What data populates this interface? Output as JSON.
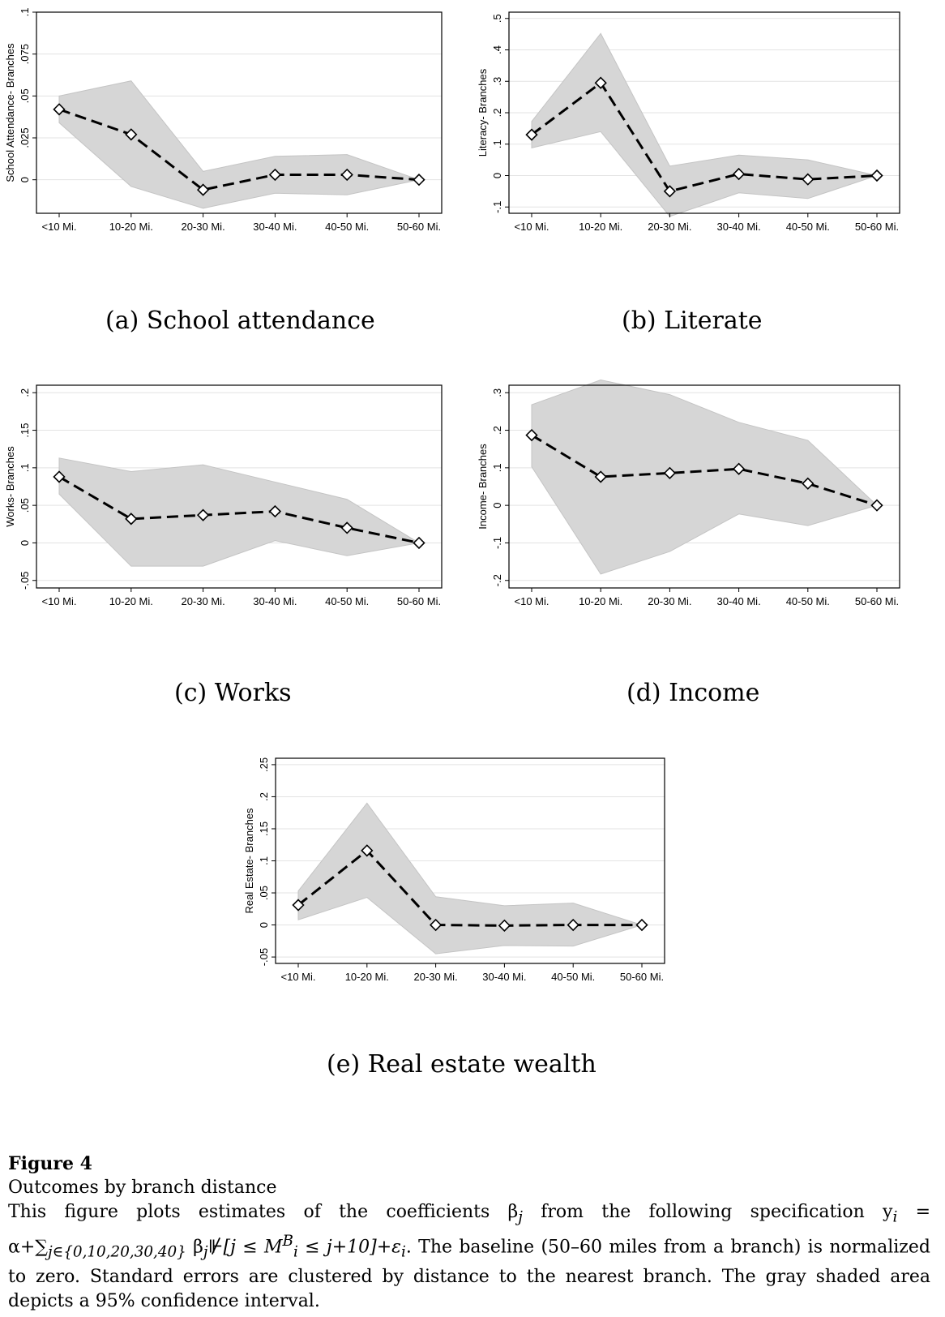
{
  "chart_data": [
    {
      "id": "a",
      "type": "line",
      "ylabel": "School Attendance- Branches",
      "categories": [
        "<10 Mi.",
        "10-20 Mi.",
        "20-30 Mi.",
        "30-40 Mi.",
        "40-50 Mi.",
        "50-60 Mi."
      ],
      "values": [
        0.042,
        0.027,
        -0.006,
        0.003,
        0.003,
        0.0
      ],
      "ci_upper": [
        0.05,
        0.059,
        0.005,
        0.014,
        0.015,
        0.0
      ],
      "ci_lower": [
        0.034,
        -0.004,
        -0.017,
        -0.008,
        -0.009,
        0.0
      ],
      "yticks": [
        0,
        0.025,
        0.05,
        0.075,
        0.1
      ],
      "ytick_labels": [
        "0",
        ".025",
        ".05",
        ".075",
        ".1"
      ],
      "ylim": [
        -0.02,
        0.1
      ],
      "caption": "(a) School attendance"
    },
    {
      "id": "b",
      "type": "line",
      "ylabel": "Literacy- Branches",
      "categories": [
        "<10 Mi.",
        "10-20 Mi.",
        "20-30 Mi.",
        "30-40 Mi.",
        "40-50 Mi.",
        "50-60 Mi."
      ],
      "values": [
        0.13,
        0.295,
        -0.05,
        0.005,
        -0.012,
        0.0
      ],
      "ci_upper": [
        0.172,
        0.452,
        0.03,
        0.065,
        0.05,
        0.0
      ],
      "ci_lower": [
        0.088,
        0.14,
        -0.13,
        -0.055,
        -0.073,
        0.0
      ],
      "yticks": [
        -0.1,
        0,
        0.1,
        0.2,
        0.3,
        0.4,
        0.5
      ],
      "ytick_labels": [
        "-.1",
        "0",
        ".1",
        ".2",
        ".3",
        ".4",
        ".5"
      ],
      "ylim": [
        -0.12,
        0.52
      ],
      "caption": "(b) Literate"
    },
    {
      "id": "c",
      "type": "line",
      "ylabel": "Works- Branches",
      "categories": [
        "<10 Mi.",
        "10-20 Mi.",
        "20-30 Mi.",
        "30-40 Mi.",
        "40-50 Mi.",
        "50-60 Mi."
      ],
      "values": [
        0.088,
        0.032,
        0.037,
        0.042,
        0.02,
        0.0
      ],
      "ci_upper": [
        0.113,
        0.095,
        0.104,
        0.081,
        0.058,
        0.0
      ],
      "ci_lower": [
        0.065,
        -0.031,
        -0.031,
        0.003,
        -0.017,
        0.0
      ],
      "yticks": [
        -0.05,
        0,
        0.05,
        0.1,
        0.15,
        0.2
      ],
      "ytick_labels": [
        "-.05",
        "0",
        ".05",
        ".1",
        ".15",
        ".2"
      ],
      "ylim": [
        -0.06,
        0.21
      ],
      "caption": "(c) Works"
    },
    {
      "id": "d",
      "type": "line",
      "ylabel": "Income- Branches",
      "categories": [
        "<10 Mi.",
        "10-20 Mi.",
        "20-30 Mi.",
        "30-40 Mi.",
        "40-50 Mi.",
        "50-60 Mi."
      ],
      "values": [
        0.187,
        0.076,
        0.086,
        0.097,
        0.058,
        0.0
      ],
      "ci_upper": [
        0.268,
        0.334,
        0.295,
        0.221,
        0.173,
        0.0
      ],
      "ci_lower": [
        0.103,
        -0.183,
        -0.123,
        -0.023,
        -0.054,
        0.0
      ],
      "yticks": [
        -0.2,
        -0.1,
        0,
        0.1,
        0.2,
        0.3
      ],
      "ytick_labels": [
        "-.2",
        "-.1",
        "0",
        ".1",
        ".2",
        ".3"
      ],
      "ylim": [
        -0.22,
        0.32
      ],
      "caption": "(d) Income"
    },
    {
      "id": "e",
      "type": "line",
      "ylabel": "Real Estate- Branches",
      "categories": [
        "<10 Mi.",
        "10-20 Mi.",
        "20-30 Mi.",
        "30-40 Mi.",
        "40-50 Mi.",
        "50-60 Mi."
      ],
      "values": [
        0.031,
        0.116,
        0.0,
        -0.001,
        0.0,
        0.0
      ],
      "ci_upper": [
        0.053,
        0.19,
        0.044,
        0.03,
        0.034,
        0.0
      ],
      "ci_lower": [
        0.008,
        0.043,
        -0.045,
        -0.032,
        -0.033,
        0.0
      ],
      "yticks": [
        -0.05,
        0,
        0.05,
        0.1,
        0.15,
        0.2,
        0.25
      ],
      "ytick_labels": [
        "-.05",
        "0",
        ".05",
        ".1",
        ".15",
        ".2",
        ".25"
      ],
      "ylim": [
        -0.06,
        0.26
      ],
      "caption": "(e) Real estate wealth"
    }
  ],
  "figure": {
    "title": "Figure 4",
    "subtitle": "Outcomes by branch distance",
    "desc_1": "This figure plots estimates of the coefficients β",
    "desc_1_sub": "j",
    "desc_2": " from the following specification y",
    "desc_2_sub": "i",
    "desc_3": " =",
    "desc_4": "α+∑",
    "desc_4_sub": "j∈{0,10,20,30,40}",
    "desc_5": " β",
    "desc_5_sub": "j",
    "desc_6": "⊮[j ≤ M",
    "desc_6_sup": "B",
    "desc_6_sub": "i",
    "desc_7": " ≤ j+10]+ε",
    "desc_7_sub": "i",
    "desc_8": ". The baseline (50–60 miles from a branch) is normalized to zero. Standard errors are clustered by distance to the nearest branch. The gray shaded area depicts a 95% confidence interval."
  }
}
